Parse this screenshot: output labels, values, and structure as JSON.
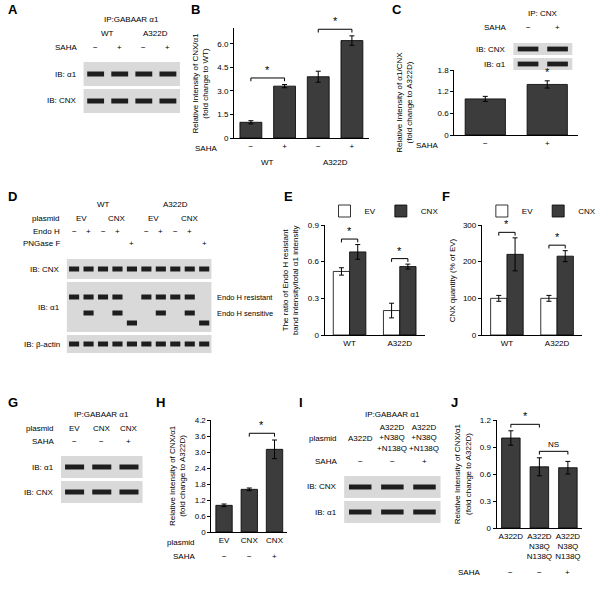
{
  "chart_data": [
    {
      "type": "bar",
      "title": "B",
      "categories": [
        "−",
        "+",
        "−",
        "+"
      ],
      "category_label": "SAHA",
      "groups": [
        "WT",
        "A322D"
      ],
      "values": [
        1.0,
        3.3,
        3.9,
        6.2
      ],
      "errors": [
        0.1,
        0.1,
        0.35,
        0.3
      ],
      "color": "#3c3c3c",
      "ylabel": [
        "Relative Intensity of CNX/α1",
        "(fold change to WT)"
      ],
      "ylim": [
        0,
        7
      ],
      "yticks": [
        0,
        1.5,
        {
          "value": 3,
          "label": "3.0"
        },
        4.5,
        {
          "value": 6,
          "label": "6.0"
        }
      ],
      "significance": [
        {
          "from": 0,
          "to": 1,
          "label": "*"
        },
        {
          "from": 2,
          "to": 3,
          "label": "*"
        }
      ]
    },
    {
      "type": "bar",
      "title": "C",
      "categories": [
        "−",
        "+"
      ],
      "category_label": "SAHA",
      "values": [
        1.0,
        1.4
      ],
      "errors": [
        0.07,
        0.1
      ],
      "color": "#3c3c3c",
      "ylabel": [
        "Relative Intensity of α1/CNX",
        "(fold change to A322D)"
      ],
      "ylim": [
        0,
        1.8
      ],
      "yticks": [
        0,
        0.6,
        1.2,
        1.8
      ],
      "significance": [
        {
          "at": 1,
          "label": "*"
        }
      ]
    },
    {
      "type": "bar",
      "title": "E",
      "categories": [
        "WT",
        "A322D"
      ],
      "series": [
        {
          "name": "EV",
          "color": "#ffffff",
          "values": [
            0.52,
            0.2
          ],
          "errors": [
            0.03,
            0.06
          ]
        },
        {
          "name": "CNX",
          "color": "#3c3c3c",
          "values": [
            0.68,
            0.56
          ],
          "errors": [
            0.06,
            0.02
          ]
        }
      ],
      "legend": "top",
      "ylabel": [
        "The ratio of Endo H resistant",
        "band intensity/total α1 intensity"
      ],
      "ylim": [
        0,
        0.9
      ],
      "yticks": [
        0,
        0.3,
        0.6,
        0.9
      ],
      "significance": [
        {
          "at": 0,
          "label": "*"
        },
        {
          "at": 1,
          "label": "*"
        }
      ]
    },
    {
      "type": "bar",
      "title": "F",
      "categories": [
        "WT",
        "A322D"
      ],
      "series": [
        {
          "name": "EV",
          "color": "#ffffff",
          "values": [
            100,
            100
          ],
          "errors": [
            8,
            8
          ]
        },
        {
          "name": "CNX",
          "color": "#3c3c3c",
          "values": [
            220,
            215
          ],
          "errors": [
            45,
            15
          ]
        }
      ],
      "legend": "top",
      "ylabel": [
        "CNX quantity (% of EV)"
      ],
      "ylim": [
        0,
        300
      ],
      "yticks": [
        0,
        100,
        200,
        300
      ],
      "significance": [
        {
          "at": 0,
          "label": "*"
        },
        {
          "at": 1,
          "label": "*"
        }
      ]
    },
    {
      "type": "bar",
      "title": "H",
      "categories": [
        "EV",
        "CNX",
        "CNX"
      ],
      "category_label": "plasmid",
      "rows": [
        {
          "label": "SAHA",
          "values": [
            "−",
            "−",
            "+"
          ]
        }
      ],
      "values": [
        1.0,
        1.6,
        3.1
      ],
      "errors": [
        0.05,
        0.05,
        0.35
      ],
      "color": "#3c3c3c",
      "ylabel": [
        "Relative Intensity of CNX/α1",
        "(fold change to A322D)"
      ],
      "ylim": [
        0,
        4.2
      ],
      "yticks": [
        0,
        0.6,
        1.2,
        1.8,
        2.4,
        {
          "value": 3,
          "label": "3.0"
        },
        3.6,
        4.2
      ],
      "significance": [
        {
          "from": 1,
          "to": 2,
          "label": "*"
        }
      ]
    },
    {
      "type": "bar",
      "title": "J",
      "categories": [
        "A322D",
        "A322D N38Q N138Q",
        "A322D N38Q N138Q"
      ],
      "rows": [
        {
          "label": "SAHA",
          "values": [
            "−",
            "−",
            "+"
          ]
        }
      ],
      "values": [
        1.0,
        0.68,
        0.67
      ],
      "errors": [
        0.08,
        0.1,
        0.07
      ],
      "color": "#3c3c3c",
      "ylabel": [
        "Relative Intensity of CNX/α1",
        "(fold change to A322D)"
      ],
      "ylim": [
        0,
        1.2
      ],
      "yticks": [
        0,
        0.3,
        0.6,
        0.9,
        1.2
      ],
      "significance": [
        {
          "from": 0,
          "to": 1,
          "label": "*"
        },
        {
          "from": 1,
          "to": 2,
          "label": "NS"
        }
      ]
    }
  ],
  "blots": [
    {
      "panel": "A",
      "title": "IP:GABAAR α1",
      "groups": [
        {
          "label": "WT",
          "lanes": 2
        },
        {
          "label": "A322D",
          "lanes": 2
        }
      ],
      "lane_rows": [
        {
          "label": "SAHA",
          "values": [
            "−",
            "+",
            "−",
            "+"
          ]
        }
      ],
      "bands": [
        {
          "label": "IB: α1"
        },
        {
          "label": "IB: CNX"
        }
      ]
    },
    {
      "title": "IP: CNX",
      "lane_rows": [
        {
          "label": "SAHA",
          "values": [
            "−",
            "+"
          ]
        }
      ],
      "bands": [
        {
          "label": "IB: CNX"
        },
        {
          "label": "IB: α1"
        }
      ]
    },
    {
      "panel": "D",
      "groups": [
        {
          "label": "WT",
          "lanes": 5
        },
        {
          "label": "A322D",
          "lanes": 5
        }
      ],
      "lane_rows": [
        {
          "label": "plasmid",
          "spans": [
            {
              "text": "EV",
              "lanes": 2
            },
            {
              "text": "CNX",
              "lanes": 3
            },
            {
              "text": "EV",
              "lanes": 2
            },
            {
              "text": "CNX",
              "lanes": 3
            }
          ]
        },
        {
          "label": "Endo H",
          "values": [
            "−",
            "+",
            "−",
            "+",
            null,
            "−",
            "+",
            "−",
            "+",
            null
          ]
        },
        {
          "label": "PNGase F",
          "values": [
            null,
            null,
            null,
            null,
            "+",
            null,
            null,
            null,
            null,
            "+"
          ]
        }
      ],
      "bands": [
        {
          "label": "IB: CNX"
        },
        {
          "label": "IB: α1",
          "side_labels": [
            "Endo H resistant",
            "Endo H sensitive"
          ]
        },
        {
          "label": "IB: β-actin"
        }
      ]
    },
    {
      "panel": "G",
      "title": "IP:GABAAR α1",
      "lane_rows": [
        {
          "label": "plasmid",
          "values": [
            "EV",
            "CNX",
            "CNX"
          ]
        },
        {
          "label": "SAHA",
          "values": [
            "−",
            "−",
            "+"
          ]
        }
      ],
      "bands": [
        {
          "label": "IB: α1"
        },
        {
          "label": "IB: CNX"
        }
      ]
    },
    {
      "panel": "I",
      "title": "IP:GABAAR α1",
      "lane_rows": [
        {
          "label": "plasmid",
          "values": [
            "A322D",
            "A322D+N38Q+N138Q",
            "A322D+N38Q+N138Q"
          ]
        },
        {
          "label": "SAHA",
          "values": [
            "−",
            "−",
            "+"
          ]
        }
      ],
      "bands": [
        {
          "label": "IB: CNX"
        },
        {
          "label": "IB: α1"
        }
      ]
    }
  ]
}
